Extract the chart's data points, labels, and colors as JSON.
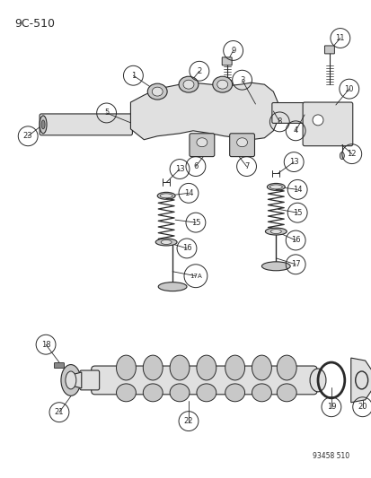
{
  "title": "9C-510",
  "footer": "93458 510",
  "bg_color": "#ffffff",
  "lc": "#2a2a2a",
  "fc_light": "#e0e0e0",
  "fc_mid": "#c8c8c8",
  "fc_dark": "#b0b0b0"
}
